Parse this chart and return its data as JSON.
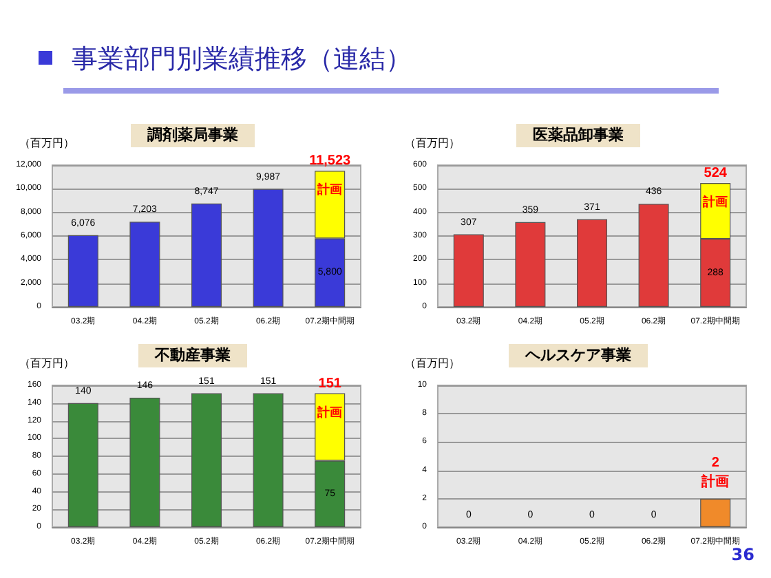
{
  "chart_data": [
    {
      "type": "bar",
      "title": "調剤薬局事業",
      "ylabel": "（百万円）",
      "annotations": [
        "事業部門別業績推移（連結）"
      ],
      "categories": [
        "03.2期",
        "04.2期",
        "05.2期",
        "06.2期",
        "07.2期中間期"
      ],
      "stacked": true,
      "grid": "y",
      "legend": false,
      "ylim": [
        0,
        12000
      ],
      "yticks": [
        0,
        {
          "value": 2000,
          "label": "2,000"
        },
        {
          "value": 4000,
          "label": "4,000"
        },
        {
          "value": 6000,
          "label": "6,000"
        },
        {
          "value": 8000,
          "label": "8,000"
        },
        {
          "value": 10000,
          "label": "10,000"
        },
        {
          "value": 12000,
          "label": "12,000"
        }
      ],
      "series": [
        {
          "color": "#3a3ad8",
          "values": [
            6076,
            7203,
            8747,
            9987,
            5800
          ],
          "value_labels": [
            "6,076",
            "7,203",
            "8,747",
            "9,987",
            "5,800"
          ]
        },
        {
          "name": "計画",
          "color": "#ffff00",
          "values": [
            null,
            null,
            null,
            null,
            5723
          ]
        }
      ],
      "totals": [
        null,
        null,
        null,
        null,
        "11,523"
      ]
    },
    {
      "type": "bar",
      "title": "医薬品卸事業",
      "ylabel": "（百万円）",
      "categories": [
        "03.2期",
        "04.2期",
        "05.2期",
        "06.2期",
        "07.2期中間期"
      ],
      "stacked": true,
      "grid": "y",
      "legend": false,
      "ylim": [
        0,
        600
      ],
      "yticks": [
        0,
        100,
        200,
        300,
        400,
        500,
        600
      ],
      "series": [
        {
          "color": "#e03a3a",
          "values": [
            307,
            359,
            371,
            436,
            288
          ],
          "value_labels": [
            "307",
            "359",
            "371",
            "436",
            "288"
          ]
        },
        {
          "name": "計画",
          "color": "#ffff00",
          "values": [
            null,
            null,
            null,
            null,
            236
          ]
        }
      ],
      "totals": [
        null,
        null,
        null,
        null,
        "524"
      ]
    },
    {
      "type": "bar",
      "title": "不動産事業",
      "ylabel": "（百万円）",
      "categories": [
        "03.2期",
        "04.2期",
        "05.2期",
        "06.2期",
        "07.2期中間期"
      ],
      "stacked": true,
      "grid": "y",
      "legend": false,
      "ylim": [
        0,
        160
      ],
      "yticks": [
        0,
        20,
        40,
        60,
        80,
        100,
        120,
        140,
        160
      ],
      "series": [
        {
          "color": "#3a8a3a",
          "values": [
            140,
            146,
            151,
            151,
            75
          ],
          "value_labels": [
            "140",
            "146",
            "151",
            "151",
            "75"
          ]
        },
        {
          "name": "計画",
          "color": "#ffff00",
          "values": [
            null,
            null,
            null,
            null,
            76
          ]
        }
      ],
      "totals": [
        null,
        null,
        null,
        null,
        "151"
      ]
    },
    {
      "type": "bar",
      "title": "ヘルスケア事業",
      "ylabel": "（百万円）",
      "annotations": [
        "36"
      ],
      "categories": [
        "03.2期",
        "04.2期",
        "05.2期",
        "06.2期",
        "07.2期中間期"
      ],
      "stacked": true,
      "grid": "y",
      "legend": false,
      "ylim": [
        0,
        10
      ],
      "yticks": [
        0,
        2,
        4,
        6,
        8,
        10
      ],
      "series": [
        {
          "color": "#f08a2a",
          "values": [
            0,
            0,
            0,
            0,
            null
          ],
          "value_labels": [
            "0",
            "0",
            "0",
            "0",
            null
          ]
        },
        {
          "name": "計画",
          "color": "#f08a2a",
          "values": [
            null,
            null,
            null,
            null,
            2
          ],
          "value_labels": [
            null,
            null,
            null,
            null,
            "2"
          ]
        }
      ]
    }
  ]
}
